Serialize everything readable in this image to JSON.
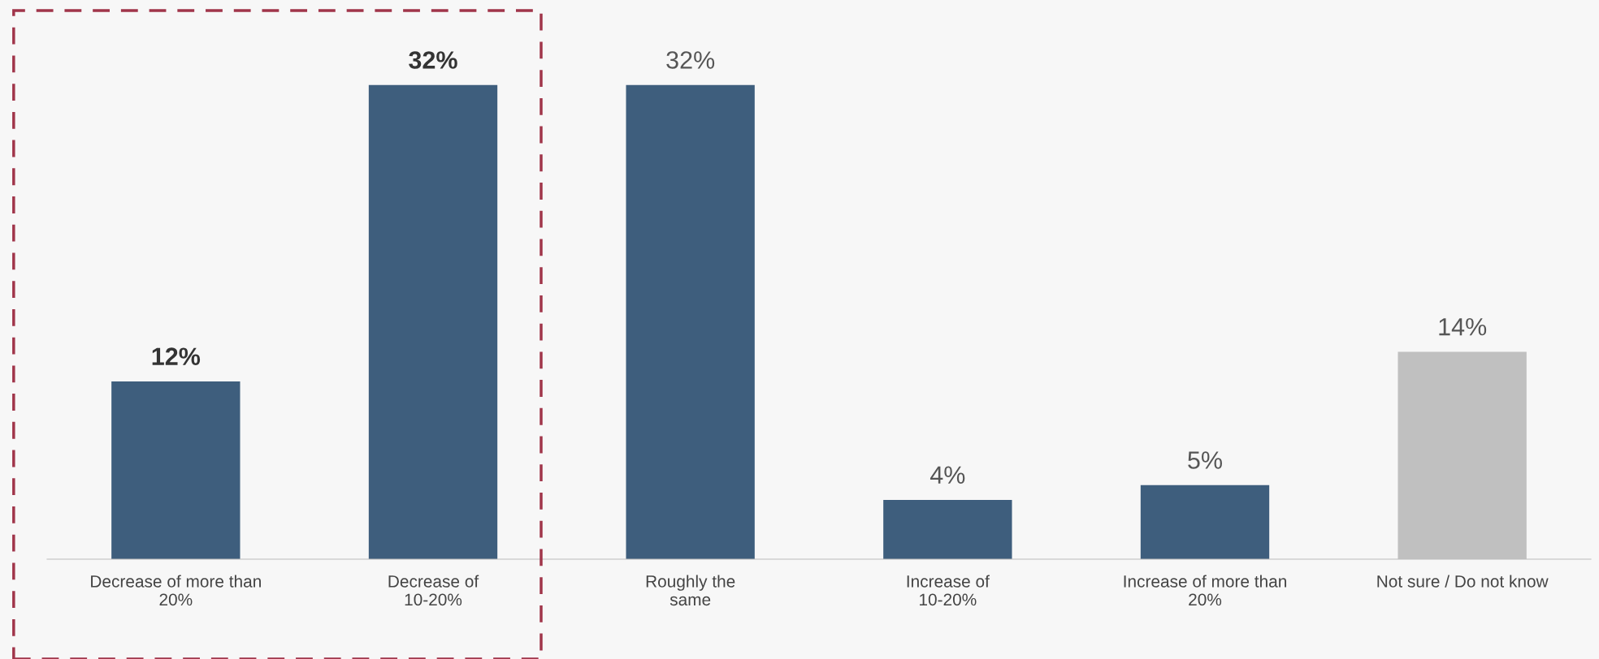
{
  "chart_data": {
    "type": "bar",
    "categories": [
      "Decrease of more than\n20%",
      "Decrease of\n10-20%",
      "Roughly the\nsame",
      "Increase of\n10-20%",
      "Increase of more than\n20%",
      "Not sure / Do not know"
    ],
    "values": [
      12,
      32,
      32,
      4,
      5,
      14
    ],
    "colors": [
      "#3e5e7d",
      "#3e5e7d",
      "#3e5e7d",
      "#3e5e7d",
      "#3e5e7d",
      "#c0c0c0"
    ],
    "value_labels": [
      "12%",
      "32%",
      "32%",
      "4%",
      "5%",
      "14%"
    ],
    "grid": false,
    "legend": false
  }
}
